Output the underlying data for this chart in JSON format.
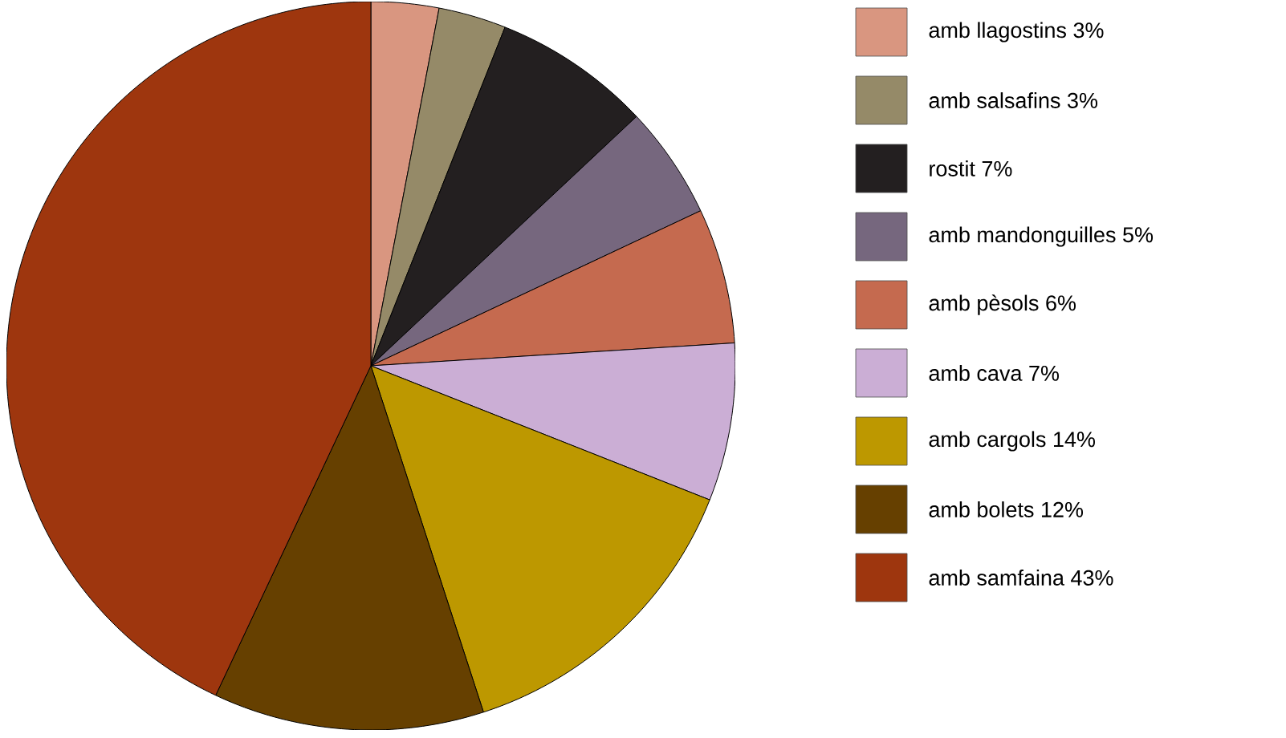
{
  "chart_data": {
    "type": "pie",
    "categories": [
      "amb llagostins 3%",
      "amb salsafins 3%",
      "rostit 7%",
      "amb mandonguilles 5%",
      "amb pèsols 6%",
      "amb cava 7%",
      "amb cargols 14%",
      "amb bolets 12%",
      "amb samfaina 43%"
    ],
    "values": [
      3,
      3,
      7,
      5,
      6,
      7,
      14,
      12,
      43
    ],
    "colors": [
      "#d99680",
      "#958a68",
      "#231f20",
      "#76677e",
      "#c56a4f",
      "#cbaed5",
      "#bd9800",
      "#664000",
      "#9e360e"
    ],
    "legend": "right"
  }
}
